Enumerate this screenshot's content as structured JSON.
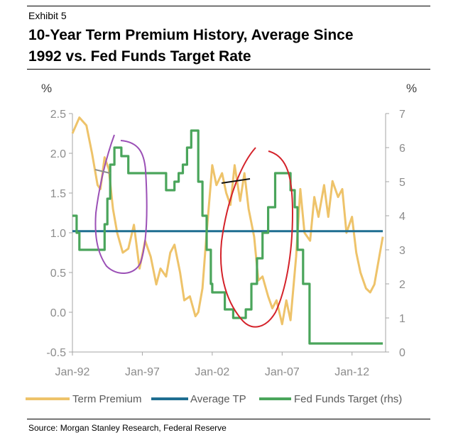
{
  "exhibit": "Exhibit 5",
  "title_line1": "10-Year Term Premium History, Average Since",
  "title_line2": "1992 vs. Fed Funds Target Rate",
  "source": "Source: Morgan Stanley Research, Federal Reserve",
  "colors": {
    "term_premium": "#eec36a",
    "average_tp": "#1f6e91",
    "fed_funds": "#4aa55b",
    "axis": "#a6a6a6",
    "annot_purple": "#9b50b6",
    "annot_red": "#d4222a",
    "annot_gray": "#8c8c8c",
    "annot_black": "#111111"
  },
  "chart_data": {
    "type": "line",
    "title": "10-Year Term Premium History, Average Since 1992 vs. Fed Funds Target Rate",
    "y_unit_left": "%",
    "y_unit_right": "%",
    "ylim_left": [
      -0.5,
      2.5
    ],
    "ylim_right": [
      0,
      7
    ],
    "xlim": [
      1992,
      2014.4
    ],
    "yticks_left": [
      {
        "v": 2.5,
        "label": "2.5"
      },
      {
        "v": 2.0,
        "label": "2.0"
      },
      {
        "v": 1.5,
        "label": "1.5"
      },
      {
        "v": 1.0,
        "label": "1.0"
      },
      {
        "v": 0.5,
        "label": "0.5"
      },
      {
        "v": 0.0,
        "label": "0.0"
      },
      {
        "v": -0.5,
        "label": "-0.5"
      }
    ],
    "yticks_right": [
      {
        "v": 7,
        "label": "7"
      },
      {
        "v": 6,
        "label": "6"
      },
      {
        "v": 5,
        "label": "5"
      },
      {
        "v": 4,
        "label": "4"
      },
      {
        "v": 3,
        "label": "3"
      },
      {
        "v": 2,
        "label": "2"
      },
      {
        "v": 1,
        "label": "1"
      },
      {
        "v": 0,
        "label": "0"
      }
    ],
    "xticks": [
      {
        "v": 1992,
        "label": "Jan-92"
      },
      {
        "v": 1997,
        "label": "Jan-97"
      },
      {
        "v": 2002,
        "label": "Jan-02"
      },
      {
        "v": 2007,
        "label": "Jan-07"
      },
      {
        "v": 2012,
        "label": "Jan-12"
      }
    ],
    "series": [
      {
        "name": "Term Premium",
        "axis": "left",
        "x": [
          1992.0,
          1992.5,
          1993.0,
          1993.4,
          1993.8,
          1994.0,
          1994.3,
          1994.6,
          1994.9,
          1995.2,
          1995.6,
          1996.0,
          1996.4,
          1996.8,
          1997.2,
          1997.6,
          1998.0,
          1998.3,
          1998.7,
          1999.0,
          1999.3,
          1999.7,
          2000.0,
          2000.4,
          2000.8,
          2001.0,
          2001.3,
          2001.6,
          2002.0,
          2002.3,
          2002.7,
          2003.0,
          2003.3,
          2003.6,
          2004.0,
          2004.3,
          2004.6,
          2005.0,
          2005.3,
          2005.6,
          2006.0,
          2006.3,
          2006.6,
          2007.0,
          2007.3,
          2007.6,
          2008.0,
          2008.3,
          2008.6,
          2009.0,
          2009.3,
          2009.6,
          2010.0,
          2010.3,
          2010.6,
          2011.0,
          2011.3,
          2011.6,
          2012.0,
          2012.3,
          2012.6,
          2013.0,
          2013.3,
          2013.6,
          2014.0,
          2014.2
        ],
        "values": [
          2.25,
          2.45,
          2.35,
          2.0,
          1.6,
          1.55,
          1.95,
          1.8,
          1.3,
          1.0,
          0.75,
          0.8,
          1.1,
          0.55,
          0.9,
          0.7,
          0.35,
          0.55,
          0.45,
          0.75,
          0.85,
          0.5,
          0.15,
          0.2,
          -0.05,
          0.0,
          0.3,
          1.0,
          1.85,
          1.6,
          1.75,
          1.5,
          1.35,
          1.85,
          1.4,
          1.75,
          1.3,
          0.95,
          0.4,
          0.45,
          0.2,
          0.05,
          0.15,
          -0.15,
          0.15,
          -0.1,
          0.7,
          1.55,
          1.0,
          0.9,
          1.45,
          1.2,
          1.6,
          1.2,
          1.65,
          1.45,
          1.55,
          1.0,
          1.2,
          0.75,
          0.5,
          0.3,
          0.25,
          0.35,
          0.75,
          0.95
        ]
      },
      {
        "name": "Average TP",
        "axis": "left",
        "x": [
          1992.0,
          2014.2
        ],
        "values": [
          1.02,
          1.02
        ]
      },
      {
        "name": "Fed Funds Target (rhs)",
        "axis": "right",
        "step": true,
        "x": [
          1992.0,
          1992.3,
          1992.5,
          1994.0,
          1994.3,
          1994.5,
          1994.7,
          1995.0,
          1995.5,
          1996.0,
          1998.0,
          1998.7,
          1999.3,
          1999.6,
          1999.9,
          2000.2,
          2000.5,
          2001.0,
          2001.3,
          2001.6,
          2001.9,
          2002.0,
          2002.9,
          2003.5,
          2004.4,
          2004.8,
          2005.2,
          2005.6,
          2006.0,
          2006.5,
          2007.6,
          2007.9,
          2008.1,
          2008.5,
          2008.96,
          2014.2
        ],
        "values": [
          4.0,
          3.5,
          3.0,
          3.0,
          3.75,
          4.5,
          5.5,
          6.0,
          5.75,
          5.25,
          5.25,
          4.75,
          5.0,
          5.25,
          5.5,
          6.0,
          6.5,
          5.0,
          4.0,
          3.0,
          2.0,
          1.75,
          1.25,
          1.0,
          1.25,
          2.0,
          2.75,
          3.5,
          4.25,
          5.25,
          4.75,
          4.25,
          3.0,
          2.0,
          0.25,
          0.25
        ]
      }
    ],
    "legend": [
      "Term Premium",
      "Average TP",
      "Fed Funds Target (rhs)"
    ],
    "legend_position": "bottom"
  }
}
